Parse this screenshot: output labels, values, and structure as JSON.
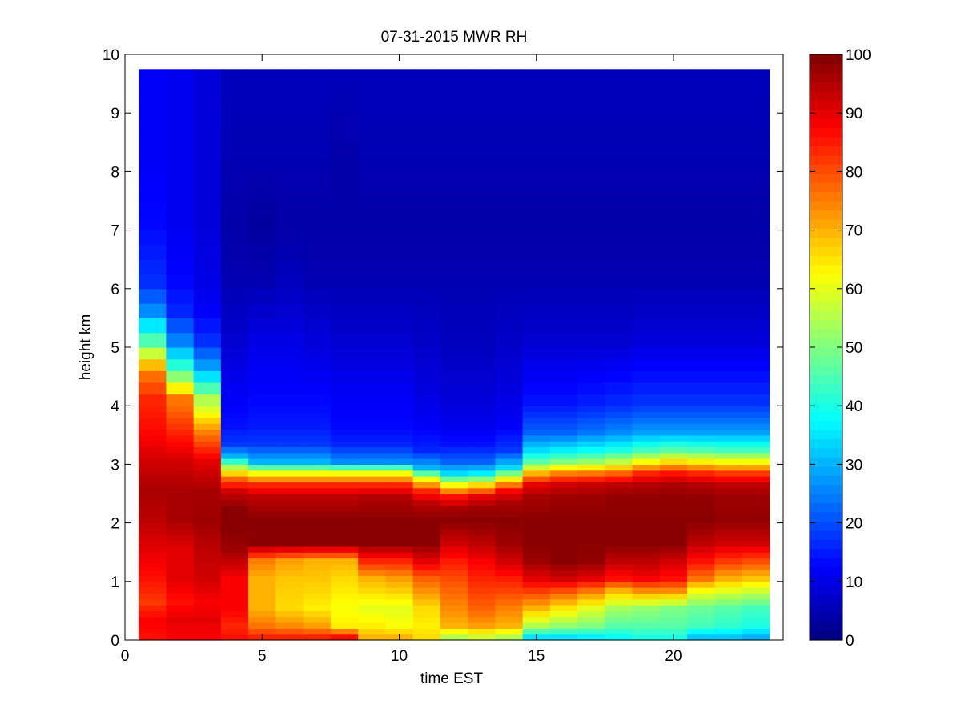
{
  "chart_data": {
    "type": "heatmap",
    "title": "07-31-2015 MWR RH",
    "xlabel": "time EST",
    "ylabel": "height km",
    "xlim": [
      0,
      24
    ],
    "ylim": [
      0,
      10
    ],
    "x_ticks": [
      0,
      5,
      10,
      15,
      20
    ],
    "y_ticks": [
      0,
      1,
      2,
      3,
      4,
      5,
      6,
      7,
      8,
      9,
      10
    ],
    "colorbar": {
      "colormap": "jet",
      "range": [
        0,
        100
      ],
      "ticks": [
        0,
        10,
        20,
        30,
        40,
        50,
        60,
        70,
        80,
        90,
        100
      ]
    },
    "grid": false,
    "x_centers": [
      0.5,
      1.5,
      2.5,
      3.5,
      4.5,
      5.5,
      6.5,
      7.5,
      8.5,
      9.5,
      10.5,
      11.5,
      12.5,
      13.5,
      14.5,
      15.5,
      16.5,
      17.5,
      18.5,
      19.5,
      20.5,
      21.5,
      22.5,
      23.5
    ],
    "height_levels": [
      0.0,
      0.1,
      0.2,
      0.3,
      0.4,
      0.5,
      0.6,
      0.7,
      0.8,
      0.9,
      1.0,
      1.1,
      1.2,
      1.3,
      1.4,
      1.5,
      1.6,
      1.7,
      1.8,
      1.9,
      2.0,
      2.1,
      2.2,
      2.3,
      2.4,
      2.5,
      2.6,
      2.7,
      2.8,
      2.9,
      3.0,
      3.1,
      3.2,
      3.3,
      3.4,
      3.5,
      3.6,
      3.7,
      3.8,
      3.9,
      4.0,
      4.2,
      4.4,
      4.6,
      4.8,
      5.0,
      5.25,
      5.5,
      5.75,
      6.0,
      6.25,
      6.5,
      6.75,
      7.0,
      7.25,
      7.5,
      7.75,
      8.0,
      8.25,
      8.5,
      8.75,
      9.0,
      9.25,
      9.5,
      9.75
    ],
    "rh_profiles": [
      {
        "x": 0.5,
        "h": [
          0,
          0.3,
          0.6,
          1.0,
          1.5,
          2.0,
          2.5,
          3.0,
          3.5,
          4.0,
          4.5,
          5.0,
          5.5,
          6.0,
          7.0,
          8.0,
          9.0,
          9.75
        ],
        "rh": [
          86,
          88,
          82,
          86,
          90,
          94,
          96,
          92,
          87,
          84,
          75,
          45,
          26,
          17,
          13,
          12,
          12,
          12
        ]
      },
      {
        "x": 1.5,
        "h": [
          0,
          0.3,
          0.6,
          1.0,
          1.5,
          2.0,
          2.5,
          3.0,
          3.5,
          4.0,
          4.5,
          5.0,
          5.5,
          6.0,
          7.0,
          8.0,
          9.0,
          9.75
        ],
        "rh": [
          88,
          90,
          86,
          90,
          90,
          96,
          96,
          92,
          84,
          76,
          45,
          25,
          16,
          13,
          11,
          11,
          11,
          11
        ]
      },
      {
        "x": 2.5,
        "h": [
          0,
          0.3,
          0.6,
          1.0,
          1.5,
          2.0,
          2.5,
          3.0,
          3.5,
          4.0,
          4.5,
          5.0,
          5.5,
          6.0,
          7.0,
          8.0,
          9.0,
          9.75
        ],
        "rh": [
          88,
          90,
          88,
          92,
          94,
          97,
          96,
          90,
          75,
          55,
          30,
          17,
          12,
          10,
          9,
          9,
          9,
          9
        ]
      },
      {
        "x": 3.5,
        "h": [
          0,
          0.2,
          0.5,
          1.0,
          1.5,
          1.8,
          2.2,
          2.5,
          2.7,
          2.9,
          3.1,
          3.3,
          3.6,
          4.0,
          5.0,
          6.0,
          7.0,
          8.0,
          9.75
        ],
        "rh": [
          86,
          84,
          88,
          88,
          97,
          99,
          99,
          92,
          78,
          55,
          30,
          18,
          14,
          12,
          8,
          5,
          4,
          5,
          6
        ]
      },
      {
        "x": 4.5,
        "h": [
          0,
          0.2,
          0.5,
          1.0,
          1.3,
          1.6,
          2.0,
          2.4,
          2.6,
          2.8,
          3.0,
          3.3,
          3.6,
          4.0,
          5.0,
          6.0,
          7.0,
          8.0,
          9.75
        ],
        "rh": [
          84,
          76,
          70,
          70,
          75,
          99,
          99,
          94,
          84,
          62,
          30,
          18,
          15,
          13,
          10,
          5,
          3,
          5,
          6
        ]
      },
      {
        "x": 5.5,
        "h": [
          0,
          0.2,
          0.5,
          1.0,
          1.3,
          1.6,
          2.0,
          2.4,
          2.6,
          2.8,
          3.0,
          3.3,
          3.6,
          4.0,
          5.0,
          6.0,
          7.0,
          8.0,
          9.75
        ],
        "rh": [
          84,
          74,
          66,
          68,
          72,
          99,
          99,
          94,
          84,
          62,
          30,
          18,
          15,
          13,
          10,
          6,
          4,
          5,
          6
        ]
      },
      {
        "x": 6.5,
        "h": [
          0,
          0.2,
          0.5,
          1.0,
          1.3,
          1.6,
          2.0,
          2.4,
          2.6,
          2.8,
          3.0,
          3.3,
          3.6,
          4.0,
          5.0,
          6.0,
          7.0,
          8.0,
          9.75
        ],
        "rh": [
          84,
          72,
          64,
          68,
          70,
          99,
          99,
          94,
          84,
          62,
          30,
          18,
          15,
          13,
          9,
          5,
          4,
          5,
          6
        ]
      },
      {
        "x": 7.5,
        "h": [
          0,
          0.2,
          0.5,
          1.0,
          1.3,
          1.6,
          2.0,
          2.4,
          2.6,
          2.8,
          3.0,
          3.3,
          3.6,
          4.0,
          5.0,
          6.0,
          7.0,
          8.0,
          9.75
        ],
        "rh": [
          86,
          64,
          62,
          66,
          70,
          99,
          99,
          94,
          84,
          62,
          26,
          16,
          13,
          12,
          8,
          5,
          4,
          4,
          6
        ]
      },
      {
        "x": 8.5,
        "h": [
          0,
          0.2,
          0.5,
          1.0,
          1.3,
          1.6,
          2.0,
          2.4,
          2.6,
          2.8,
          3.0,
          3.3,
          3.6,
          4.0,
          5.0,
          6.0,
          7.0,
          8.0,
          9.75
        ],
        "rh": [
          70,
          64,
          60,
          70,
          84,
          99,
          99,
          95,
          84,
          62,
          26,
          16,
          13,
          12,
          8,
          5,
          4,
          5,
          6
        ]
      },
      {
        "x": 9.5,
        "h": [
          0,
          0.2,
          0.5,
          1.0,
          1.3,
          1.6,
          2.0,
          2.4,
          2.6,
          2.8,
          3.0,
          3.3,
          3.6,
          4.0,
          5.0,
          6.0,
          7.0,
          8.0,
          9.75
        ],
        "rh": [
          70,
          62,
          60,
          72,
          84,
          99,
          99,
          95,
          84,
          62,
          26,
          16,
          13,
          12,
          8,
          5,
          4,
          5,
          6
        ]
      },
      {
        "x": 10.5,
        "h": [
          0,
          0.2,
          0.5,
          1.0,
          1.3,
          1.6,
          2.0,
          2.3,
          2.5,
          2.7,
          2.9,
          3.2,
          3.6,
          4.0,
          5.0,
          6.0,
          7.0,
          8.0,
          9.75
        ],
        "rh": [
          66,
          64,
          66,
          78,
          90,
          99,
          99,
          94,
          84,
          62,
          30,
          16,
          12,
          10,
          7,
          5,
          4,
          5,
          6
        ]
      },
      {
        "x": 11.5,
        "h": [
          0,
          0.2,
          0.5,
          1.0,
          1.3,
          1.6,
          2.0,
          2.2,
          2.4,
          2.6,
          2.8,
          3.0,
          3.3,
          3.6,
          4.0,
          5.0,
          6.0,
          7.0,
          8.0,
          9.75
        ],
        "rh": [
          55,
          70,
          74,
          80,
          85,
          92,
          99,
          96,
          86,
          62,
          34,
          22,
          14,
          11,
          9,
          6,
          5,
          4,
          5,
          6
        ]
      },
      {
        "x": 12.5,
        "h": [
          0,
          0.2,
          0.5,
          1.0,
          1.3,
          1.6,
          2.0,
          2.2,
          2.4,
          2.6,
          2.8,
          3.0,
          3.3,
          3.6,
          4.0,
          5.0,
          6.0,
          7.0,
          8.0,
          9.75
        ],
        "rh": [
          58,
          72,
          78,
          84,
          88,
          94,
          99,
          97,
          90,
          66,
          36,
          22,
          14,
          11,
          9,
          6,
          5,
          4,
          5,
          6
        ]
      },
      {
        "x": 13.5,
        "h": [
          0,
          0.2,
          0.5,
          1.0,
          1.3,
          1.6,
          2.0,
          2.3,
          2.5,
          2.7,
          2.9,
          3.2,
          3.6,
          4.0,
          5.0,
          6.0,
          7.0,
          8.0,
          9.75
        ],
        "rh": [
          55,
          70,
          75,
          85,
          92,
          97,
          99,
          96,
          88,
          64,
          34,
          18,
          12,
          10,
          7,
          5,
          4,
          5,
          6
        ]
      },
      {
        "x": 14.5,
        "h": [
          0,
          0.2,
          0.5,
          0.8,
          1.0,
          1.3,
          1.6,
          2.0,
          2.4,
          2.6,
          2.8,
          3.0,
          3.2,
          3.5,
          4.0,
          5.0,
          6.0,
          7.0,
          8.0,
          9.75
        ],
        "rh": [
          35,
          55,
          70,
          82,
          90,
          97,
          99,
          99,
          96,
          90,
          70,
          46,
          34,
          22,
          14,
          8,
          5,
          4,
          5,
          6
        ]
      },
      {
        "x": 15.5,
        "h": [
          0,
          0.2,
          0.5,
          0.8,
          1.0,
          1.3,
          1.6,
          2.0,
          2.4,
          2.6,
          2.8,
          3.0,
          3.2,
          3.5,
          4.0,
          5.0,
          6.0,
          7.0,
          8.0,
          9.75
        ],
        "rh": [
          35,
          52,
          65,
          80,
          92,
          99,
          99,
          99,
          97,
          92,
          75,
          50,
          36,
          22,
          14,
          8,
          5,
          4,
          5,
          6
        ]
      },
      {
        "x": 16.5,
        "h": [
          0,
          0.2,
          0.5,
          0.8,
          1.0,
          1.3,
          1.6,
          2.0,
          2.4,
          2.6,
          2.8,
          3.0,
          3.2,
          3.5,
          4.0,
          5.0,
          6.0,
          7.0,
          8.0,
          9.75
        ],
        "rh": [
          36,
          50,
          60,
          76,
          90,
          98,
          99,
          99,
          97,
          93,
          76,
          52,
          38,
          24,
          15,
          8,
          5,
          4,
          5,
          6
        ]
      },
      {
        "x": 17.5,
        "h": [
          0,
          0.2,
          0.5,
          0.8,
          1.0,
          1.3,
          1.6,
          2.0,
          2.4,
          2.6,
          2.8,
          3.0,
          3.2,
          3.5,
          4.0,
          5.0,
          6.0,
          7.0,
          8.0,
          9.75
        ],
        "rh": [
          38,
          46,
          54,
          70,
          86,
          94,
          99,
          99,
          98,
          94,
          78,
          56,
          40,
          26,
          16,
          8,
          5,
          4,
          5,
          6
        ]
      },
      {
        "x": 18.5,
        "h": [
          0,
          0.2,
          0.5,
          0.8,
          1.0,
          1.3,
          1.6,
          2.0,
          2.4,
          2.6,
          2.8,
          3.0,
          3.2,
          3.5,
          4.0,
          5.0,
          6.0,
          7.0,
          8.0,
          9.75
        ],
        "rh": [
          40,
          46,
          52,
          74,
          88,
          94,
          99,
          99,
          98,
          95,
          84,
          62,
          44,
          28,
          17,
          9,
          5,
          4,
          5,
          6
        ]
      },
      {
        "x": 19.5,
        "h": [
          0,
          0.2,
          0.5,
          0.8,
          1.0,
          1.3,
          1.6,
          2.0,
          2.4,
          2.6,
          2.8,
          3.0,
          3.2,
          3.5,
          4.0,
          5.0,
          6.0,
          7.0,
          8.0,
          9.75
        ],
        "rh": [
          40,
          46,
          50,
          74,
          86,
          92,
          99,
          99,
          98,
          96,
          86,
          66,
          46,
          28,
          17,
          9,
          5,
          4,
          5,
          6
        ]
      },
      {
        "x": 20.5,
        "h": [
          0,
          0.2,
          0.5,
          0.8,
          1.0,
          1.3,
          1.6,
          2.0,
          2.4,
          2.6,
          2.8,
          3.0,
          3.2,
          3.5,
          4.0,
          5.0,
          6.0,
          7.0,
          8.0,
          9.75
        ],
        "rh": [
          32,
          44,
          48,
          62,
          76,
          86,
          94,
          99,
          98,
          95,
          84,
          64,
          45,
          28,
          17,
          9,
          5,
          4,
          5,
          6
        ]
      },
      {
        "x": 21.5,
        "h": [
          0,
          0.2,
          0.5,
          0.8,
          1.0,
          1.3,
          1.6,
          2.0,
          2.4,
          2.6,
          2.8,
          3.0,
          3.2,
          3.5,
          4.0,
          5.0,
          6.0,
          7.0,
          8.0,
          9.75
        ],
        "rh": [
          32,
          42,
          46,
          60,
          70,
          82,
          92,
          98,
          97,
          94,
          82,
          62,
          44,
          28,
          17,
          9,
          5,
          4,
          5,
          6
        ]
      },
      {
        "x": 22.5,
        "h": [
          0,
          0.2,
          0.5,
          0.8,
          1.0,
          1.3,
          1.6,
          2.0,
          2.4,
          2.6,
          2.8,
          3.0,
          3.2,
          3.5,
          4.0,
          5.0,
          6.0,
          7.0,
          8.0,
          9.75
        ],
        "rh": [
          30,
          40,
          44,
          58,
          68,
          80,
          92,
          98,
          97,
          94,
          82,
          62,
          44,
          28,
          17,
          9,
          5,
          4,
          5,
          6
        ]
      },
      {
        "x": 23.5,
        "h": [
          0,
          0.2,
          0.5,
          0.8,
          1.0,
          1.3,
          1.6,
          2.0,
          2.4,
          2.6,
          2.8,
          3.0,
          3.2,
          3.5,
          4.0,
          5.0,
          6.0,
          7.0,
          8.0,
          9.75
        ],
        "rh": [
          30,
          40,
          44,
          56,
          68,
          80,
          92,
          98,
          97,
          94,
          82,
          62,
          44,
          28,
          17,
          9,
          5,
          4,
          5,
          6
        ]
      }
    ]
  }
}
